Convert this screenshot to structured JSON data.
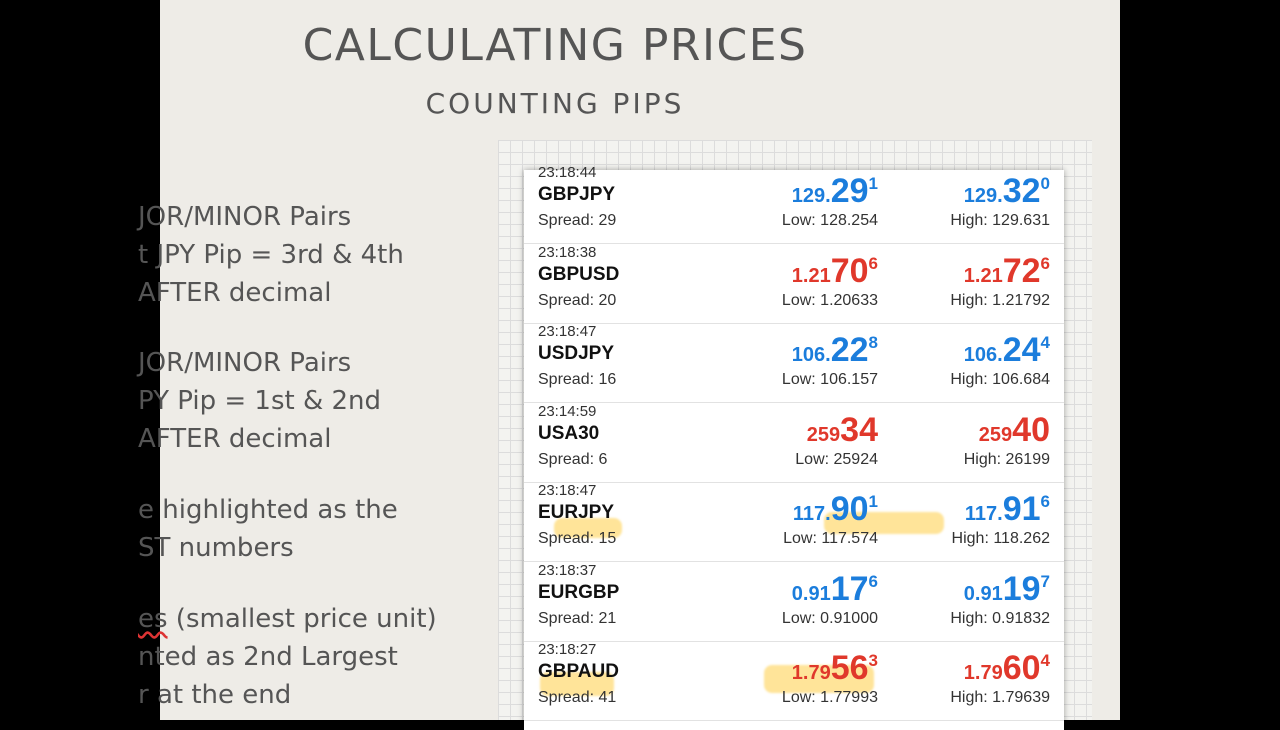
{
  "slide": {
    "title": "CALCULATING PRICES",
    "subtitle": "COUNTING PIPS"
  },
  "bullets": [
    "JOR/MINOR Pairs",
    "t JPY Pip = 3rd & 4th",
    "AFTER decimal",
    "JOR/MINOR Pairs",
    "PY Pip = 1st & 2nd",
    "AFTER decimal",
    "e highlighted as the",
    "ST numbers",
    "es",
    " (smallest price unit)",
    "nted as 2nd Largest",
    "r at the end"
  ],
  "quotes": [
    {
      "time": "23:18:44",
      "symbol": "GBPJPY",
      "spread": "Spread: 29",
      "color": "blue",
      "bid": {
        "pre": "129.",
        "big": "29",
        "sup": "1"
      },
      "ask": {
        "pre": "129.",
        "big": "32",
        "sup": "0"
      },
      "low": "Low: 128.254",
      "high": "High: 129.631"
    },
    {
      "time": "23:18:38",
      "symbol": "GBPUSD",
      "spread": "Spread: 20",
      "color": "red",
      "bid": {
        "pre": "1.21",
        "big": "70",
        "sup": "6"
      },
      "ask": {
        "pre": "1.21",
        "big": "72",
        "sup": "6"
      },
      "low": "Low: 1.20633",
      "high": "High: 1.21792"
    },
    {
      "time": "23:18:47",
      "symbol": "USDJPY",
      "spread": "Spread: 16",
      "color": "blue",
      "bid": {
        "pre": "106.",
        "big": "22",
        "sup": "8"
      },
      "ask": {
        "pre": "106.",
        "big": "24",
        "sup": "4"
      },
      "low": "Low: 106.157",
      "high": "High: 106.684"
    },
    {
      "time": "23:14:59",
      "symbol": "USA30",
      "spread": "Spread: 6",
      "color": "red",
      "bid": {
        "pre": "259",
        "big": "34",
        "sup": ""
      },
      "ask": {
        "pre": "259",
        "big": "40",
        "sup": ""
      },
      "low": "Low: 25924",
      "high": "High: 26199"
    },
    {
      "time": "23:18:47",
      "symbol": "EURJPY",
      "spread": "Spread: 15",
      "color": "blue",
      "bid": {
        "pre": "117.",
        "big": "90",
        "sup": "1"
      },
      "ask": {
        "pre": "117.",
        "big": "91",
        "sup": "6"
      },
      "low": "Low: 117.574",
      "high": "High: 118.262"
    },
    {
      "time": "23:18:37",
      "symbol": "EURGBP",
      "spread": "Spread: 21",
      "color": "blue",
      "bid": {
        "pre": "0.91",
        "big": "17",
        "sup": "6"
      },
      "ask": {
        "pre": "0.91",
        "big": "19",
        "sup": "7"
      },
      "low": "Low: 0.91000",
      "high": "High: 0.91832"
    },
    {
      "time": "23:18:27",
      "symbol": "GBPAUD",
      "spread": "Spread: 41",
      "color": "red",
      "bid": {
        "pre": "1.79",
        "big": "56",
        "sup": "3"
      },
      "ask": {
        "pre": "1.79",
        "big": "60",
        "sup": "4"
      },
      "low": "Low: 1.77993",
      "high": "High: 1.79639"
    }
  ]
}
